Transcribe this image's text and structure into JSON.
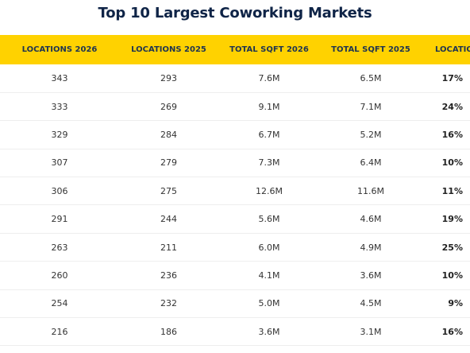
{
  "title": "Top 10 Largest Coworking Markets",
  "columns": [
    "LOCATIONS 2026",
    "LOCATIONS 2025",
    "TOTAL SQFT 2026",
    "TOTAL SQFT 2025",
    "LOCATION"
  ],
  "rows": [
    [
      "343",
      "293",
      "7.6M",
      "6.5M",
      "17%"
    ],
    [
      "333",
      "269",
      "9.1M",
      "7.1M",
      "24%"
    ],
    [
      "329",
      "284",
      "6.7M",
      "5.2M",
      "16%"
    ],
    [
      "307",
      "279",
      "7.3M",
      "6.4M",
      "10%"
    ],
    [
      "306",
      "275",
      "12.6M",
      "11.6M",
      "11%"
    ],
    [
      "291",
      "244",
      "5.6M",
      "4.6M",
      "19%"
    ],
    [
      "263",
      "211",
      "6.0M",
      "4.9M",
      "25%"
    ],
    [
      "260",
      "236",
      "4.1M",
      "3.6M",
      "10%"
    ],
    [
      "254",
      "232",
      "5.0M",
      "4.5M",
      "9%"
    ],
    [
      "216",
      "186",
      "3.6M",
      "3.1M",
      "16%"
    ]
  ],
  "colors": {
    "header_bg": "#ffd200",
    "title": "#0f2447"
  }
}
